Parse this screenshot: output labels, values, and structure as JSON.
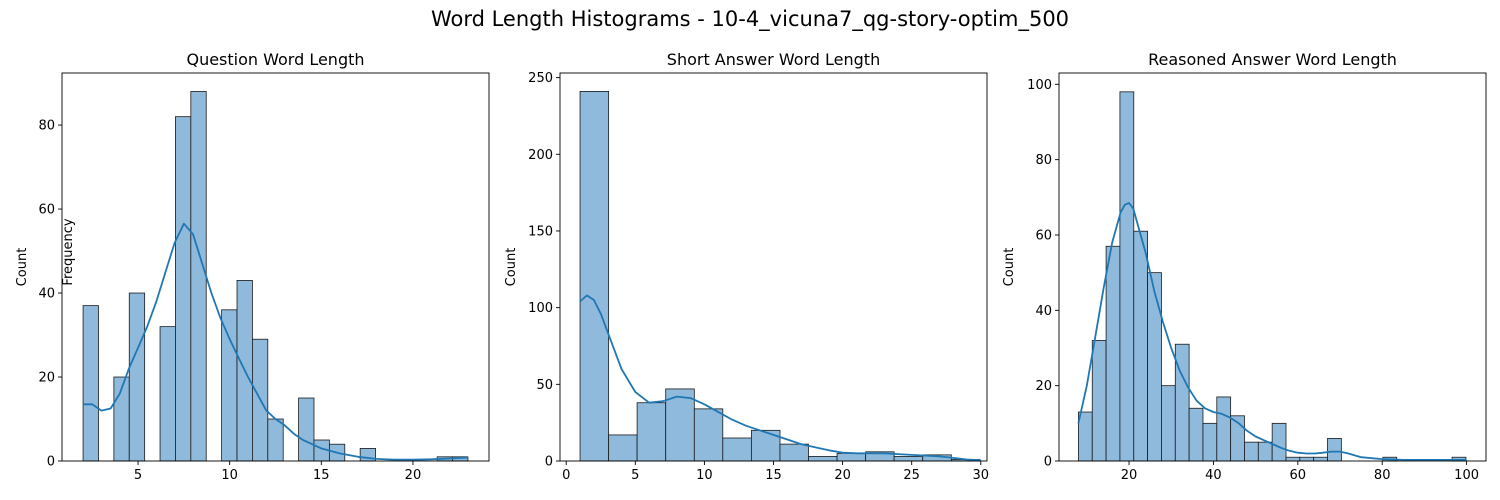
{
  "title": "Word Length Histograms - 10-4_vicuna7_qg-story-optim_500",
  "overlay_label": "Frequency",
  "colors": {
    "bar_fill": "#8fbadc",
    "bar_edge": "#1a1a1a",
    "kde": "#1f77b4"
  },
  "chart_data": [
    {
      "type": "bar",
      "title": "Question Word Length",
      "ylabel": "Count",
      "xlabel": "",
      "xlim": [
        0.85,
        24.15
      ],
      "ylim": [
        0,
        92.4
      ],
      "xticks": [
        5,
        10,
        15,
        20
      ],
      "yticks": [
        0,
        20,
        40,
        60,
        80
      ],
      "bins": [
        [
          2,
          2.84,
          37
        ],
        [
          2.84,
          3.68,
          0
        ],
        [
          3.68,
          4.52,
          20
        ],
        [
          4.52,
          5.36,
          40
        ],
        [
          5.36,
          6.2,
          0
        ],
        [
          6.2,
          7.04,
          32
        ],
        [
          7.04,
          7.88,
          82
        ],
        [
          7.88,
          8.72,
          88
        ],
        [
          8.72,
          9.56,
          0
        ],
        [
          9.56,
          10.4,
          36
        ],
        [
          10.4,
          11.24,
          43
        ],
        [
          11.24,
          12.08,
          29
        ],
        [
          12.08,
          12.92,
          10
        ],
        [
          12.92,
          13.76,
          0
        ],
        [
          13.76,
          14.6,
          15
        ],
        [
          14.6,
          15.44,
          5
        ],
        [
          15.44,
          16.28,
          4
        ],
        [
          16.28,
          17.12,
          0
        ],
        [
          17.12,
          17.96,
          3
        ],
        [
          17.96,
          18.8,
          0
        ],
        [
          18.8,
          19.64,
          0
        ],
        [
          19.64,
          20.48,
          0
        ],
        [
          20.48,
          21.32,
          0
        ],
        [
          21.32,
          22.16,
          1
        ],
        [
          22.16,
          23,
          1
        ]
      ],
      "kde": {
        "x": [
          2,
          2.5,
          3,
          3.5,
          4,
          4.5,
          5,
          5.5,
          6,
          6.5,
          7,
          7.5,
          8,
          8.5,
          9,
          9.5,
          10,
          10.5,
          11,
          11.5,
          12,
          12.5,
          13,
          13.5,
          14,
          14.5,
          15,
          16,
          17,
          18,
          19,
          20,
          21,
          22,
          23
        ],
        "y": [
          13.5,
          13.5,
          12,
          12.5,
          16,
          22,
          27,
          32,
          38,
          45,
          52,
          56.5,
          54,
          47,
          40,
          34,
          29,
          24.5,
          20,
          16,
          12,
          10,
          8.5,
          6.5,
          5,
          4,
          3,
          1.8,
          1,
          0.5,
          0.3,
          0.3,
          0.4,
          0.6,
          0.8
        ]
      }
    },
    {
      "type": "bar",
      "title": "Short Answer Word Length",
      "ylabel": "Count",
      "xlabel": "",
      "xlim": [
        -0.45,
        30.45
      ],
      "ylim": [
        0,
        253
      ],
      "xticks": [
        0,
        5,
        10,
        15,
        20,
        25,
        30
      ],
      "yticks": [
        0,
        50,
        100,
        150,
        200,
        250
      ],
      "bins": [
        [
          1,
          3.07,
          241
        ],
        [
          3.07,
          5.13,
          17
        ],
        [
          5.13,
          7.2,
          38
        ],
        [
          7.2,
          9.27,
          47
        ],
        [
          9.27,
          11.33,
          34
        ],
        [
          11.33,
          13.4,
          15
        ],
        [
          13.4,
          15.47,
          20
        ],
        [
          15.47,
          17.53,
          11
        ],
        [
          17.53,
          19.6,
          3
        ],
        [
          19.6,
          21.67,
          5
        ],
        [
          21.67,
          23.73,
          6
        ],
        [
          23.73,
          25.8,
          3
        ],
        [
          25.8,
          27.87,
          4
        ],
        [
          27.87,
          29.93,
          1
        ]
      ],
      "kde": {
        "x": [
          1,
          1.5,
          2,
          2.5,
          3,
          3.5,
          4,
          5,
          6,
          7,
          8,
          9,
          10,
          11,
          12,
          13,
          14,
          15,
          16,
          17,
          18,
          19,
          20,
          21,
          22,
          23,
          24,
          25,
          26,
          27,
          28,
          29,
          30
        ],
        "y": [
          104,
          108,
          105,
          96,
          84,
          72,
          60,
          45,
          38,
          39,
          42,
          41,
          37,
          32,
          27,
          23,
          20,
          17,
          14,
          11,
          9,
          7,
          5.5,
          5,
          5,
          5,
          4.5,
          4,
          3.5,
          3,
          2,
          1,
          0.5
        ]
      }
    },
    {
      "type": "bar",
      "title": "Reasoned Answer Word Length",
      "ylabel": "Count",
      "xlabel": "",
      "xlim": [
        3.4,
        104.6
      ],
      "ylim": [
        0,
        103
      ],
      "xticks": [
        20,
        40,
        60,
        80,
        100
      ],
      "yticks": [
        0,
        20,
        40,
        60,
        80,
        100
      ],
      "bins": [
        [
          8,
          11.28,
          13
        ],
        [
          11.28,
          14.56,
          32
        ],
        [
          14.56,
          17.84,
          57
        ],
        [
          17.84,
          21.12,
          98
        ],
        [
          21.12,
          24.4,
          61
        ],
        [
          24.4,
          27.68,
          50
        ],
        [
          27.68,
          30.96,
          20
        ],
        [
          30.96,
          34.24,
          31
        ],
        [
          34.24,
          37.52,
          14
        ],
        [
          37.52,
          40.8,
          10
        ],
        [
          40.8,
          44.08,
          17
        ],
        [
          44.08,
          47.36,
          12
        ],
        [
          47.36,
          50.64,
          5
        ],
        [
          50.64,
          53.92,
          5
        ],
        [
          53.92,
          57.2,
          10
        ],
        [
          57.2,
          60.48,
          1
        ],
        [
          60.48,
          63.76,
          1
        ],
        [
          63.76,
          67.04,
          1
        ],
        [
          67.04,
          70.32,
          6
        ],
        [
          70.32,
          73.6,
          0
        ],
        [
          73.6,
          76.88,
          0
        ],
        [
          76.88,
          80.16,
          0
        ],
        [
          80.16,
          83.44,
          1
        ],
        [
          83.44,
          86.72,
          0
        ],
        [
          86.72,
          90,
          0
        ],
        [
          90,
          93.28,
          0
        ],
        [
          93.28,
          96.56,
          0
        ],
        [
          96.56,
          99.84,
          1
        ]
      ],
      "kde": {
        "x": [
          8,
          10,
          12,
          14,
          16,
          18,
          19,
          20,
          21,
          22,
          24,
          26,
          28,
          30,
          32,
          34,
          36,
          38,
          40,
          42,
          44,
          46,
          48,
          50,
          52,
          54,
          56,
          58,
          60,
          62,
          64,
          66,
          68,
          70,
          72,
          75,
          80,
          85,
          90,
          95,
          100
        ],
        "y": [
          10,
          20,
          33,
          46,
          58,
          66,
          68,
          68.5,
          67,
          63,
          55,
          45,
          37,
          30,
          24,
          19.5,
          16,
          14,
          13,
          12.5,
          11.5,
          10,
          8,
          6.5,
          5.5,
          4.5,
          3.5,
          2.7,
          2.2,
          2,
          2,
          2.2,
          2.5,
          2.5,
          2,
          1,
          0.5,
          0.3,
          0.3,
          0.3,
          0.3
        ]
      }
    }
  ]
}
